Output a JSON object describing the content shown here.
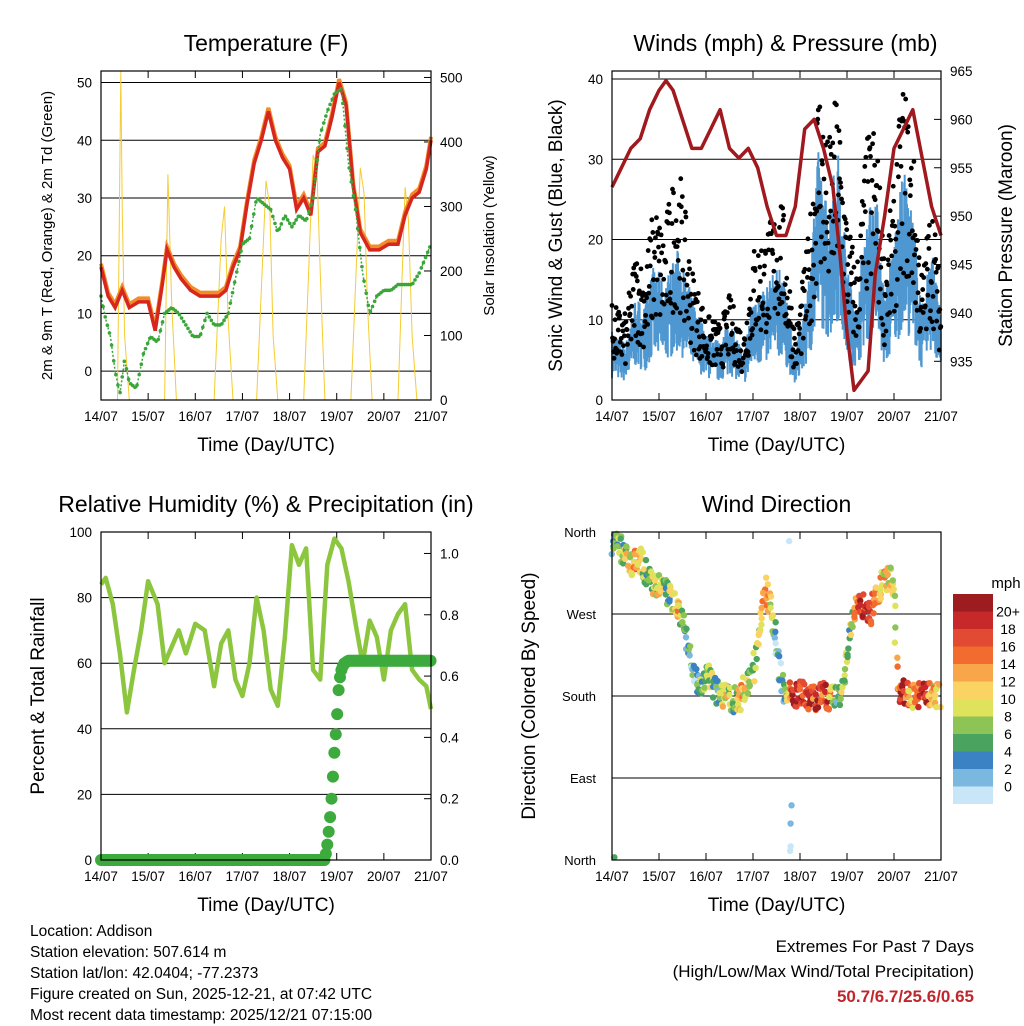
{
  "colors": {
    "temp2m": "#d7261e",
    "temp9m": "#f28c28",
    "dew": "#3aa63a",
    "solar": "#f5cc33",
    "wind": "#4f97d1",
    "gust": "#000000",
    "pressure": "#a0191e",
    "rh": "#8cc63f",
    "precip": "#3daa3d",
    "extreme": "#c0272d"
  },
  "chart_data": [
    {
      "id": "temperature",
      "type": "line",
      "title": "Temperature (F)",
      "xlabel": "Time (Day/UTC)",
      "ylabel": "2m & 9m T (Red, Orange) & 2m Td (Green)",
      "y2label": "Solar Insolation (Yellow)",
      "xticks": [
        "14/07",
        "15/07",
        "16/07",
        "17/07",
        "18/07",
        "19/07",
        "20/07",
        "21/07"
      ],
      "xlim": [
        0,
        7
      ],
      "ylim": [
        -5,
        52
      ],
      "y2lim": [
        0,
        510
      ],
      "yticks": [
        0,
        10,
        20,
        30,
        40,
        50
      ],
      "y2ticks": [
        0,
        100,
        200,
        300,
        400,
        500
      ],
      "series": [
        {
          "name": "2m T",
          "x": [
            0,
            0.15,
            0.3,
            0.45,
            0.6,
            0.8,
            1.0,
            1.15,
            1.3,
            1.4,
            1.55,
            1.7,
            1.9,
            2.1,
            2.3,
            2.5,
            2.65,
            2.8,
            2.95,
            3.1,
            3.25,
            3.4,
            3.55,
            3.7,
            3.85,
            4.0,
            4.15,
            4.3,
            4.45,
            4.6,
            4.75,
            4.9,
            5.05,
            5.2,
            5.35,
            5.5,
            5.7,
            5.9,
            6.1,
            6.3,
            6.45,
            6.6,
            6.75,
            6.9,
            7.0
          ],
          "values": [
            18,
            13,
            11,
            14,
            11,
            12,
            12,
            7,
            15,
            21,
            18,
            16,
            14,
            13,
            13,
            13,
            14,
            18,
            21,
            29,
            36,
            40,
            45,
            40,
            37,
            35,
            28,
            30,
            27,
            38,
            39,
            44,
            50,
            46,
            32,
            24,
            21,
            21,
            22,
            22,
            27,
            30,
            31,
            35,
            40
          ]
        },
        {
          "name": "Td",
          "x": [
            0,
            0.1,
            0.2,
            0.3,
            0.4,
            0.5,
            0.6,
            0.75,
            0.9,
            1.05,
            1.2,
            1.35,
            1.5,
            1.65,
            1.8,
            1.95,
            2.1,
            2.25,
            2.4,
            2.55,
            2.7,
            2.85,
            3.0,
            3.15,
            3.3,
            3.45,
            3.6,
            3.75,
            3.9,
            4.05,
            4.2,
            4.35,
            4.5,
            4.65,
            4.8,
            4.95,
            5.1,
            5.25,
            5.4,
            5.55,
            5.7,
            5.85,
            6.0,
            6.15,
            6.3,
            6.45,
            6.6,
            6.75,
            6.9,
            7.0
          ],
          "values": [
            13,
            9,
            6,
            0,
            -4,
            2,
            -2,
            -3,
            3,
            6,
            5,
            10,
            11,
            10,
            8,
            6,
            6,
            10,
            8,
            8,
            10,
            16,
            22,
            23,
            30,
            29,
            28,
            24,
            27,
            25,
            27,
            26,
            30,
            41,
            45,
            48,
            49,
            36,
            28,
            17,
            10,
            13,
            14,
            14,
            15,
            15,
            15,
            17,
            20,
            22
          ]
        },
        {
          "name": "Solar",
          "x": [
            0,
            0.35,
            0.42,
            0.45,
            0.5,
            0.6,
            1.35,
            1.42,
            1.5,
            1.6,
            2.4,
            2.55,
            2.62,
            2.7,
            2.8,
            3.3,
            3.5,
            3.58,
            3.65,
            3.75,
            4.3,
            4.5,
            4.58,
            4.65,
            4.75,
            5.3,
            5.5,
            5.58,
            5.65,
            5.75,
            6.3,
            6.45,
            6.52,
            6.6,
            6.7,
            7.0
          ],
          "values": [
            0,
            0,
            510,
            300,
            100,
            0,
            0,
            350,
            150,
            0,
            0,
            250,
            300,
            120,
            0,
            0,
            340,
            300,
            100,
            0,
            0,
            380,
            360,
            200,
            0,
            0,
            360,
            320,
            150,
            0,
            0,
            330,
            280,
            100,
            0,
            0
          ]
        }
      ]
    },
    {
      "id": "winds",
      "type": "line",
      "title": "Winds (mph) & Pressure (mb)",
      "xlabel": "Time (Day/UTC)",
      "ylabel": "Sonic Wind & Gust (Blue, Black)",
      "y2label": "Station Pressure (Maroon)",
      "xticks": [
        "14/07",
        "15/07",
        "16/07",
        "17/07",
        "18/07",
        "19/07",
        "20/07",
        "21/07"
      ],
      "xlim": [
        0,
        7
      ],
      "ylim": [
        0,
        41
      ],
      "y2lim": [
        931,
        965
      ],
      "yticks": [
        0,
        10,
        20,
        30,
        40
      ],
      "y2ticks": [
        935,
        940,
        945,
        950,
        955,
        960,
        965
      ],
      "series": [
        {
          "name": "Wind",
          "x": [
            0,
            0.3,
            0.5,
            0.7,
            0.9,
            1.1,
            1.4,
            1.7,
            2.0,
            2.3,
            2.5,
            2.8,
            3.0,
            3.3,
            3.6,
            3.9,
            4.2,
            4.4,
            4.6,
            4.8,
            5.0,
            5.2,
            5.4,
            5.6,
            5.8,
            6.0,
            6.2,
            6.4,
            6.6,
            6.8,
            7.0
          ],
          "values": [
            6,
            5,
            9,
            8,
            12,
            10,
            13,
            9,
            6,
            5,
            7,
            4,
            9,
            10,
            12,
            4,
            11,
            22,
            16,
            22,
            12,
            8,
            16,
            19,
            9,
            14,
            20,
            16,
            8,
            14,
            7
          ]
        },
        {
          "name": "Gust",
          "x": [
            0,
            0.3,
            0.5,
            0.7,
            0.9,
            1.1,
            1.4,
            1.7,
            2.0,
            2.3,
            2.5,
            2.8,
            3.0,
            3.3,
            3.6,
            3.9,
            4.2,
            4.4,
            4.6,
            4.8,
            5.0,
            5.2,
            5.4,
            5.6,
            5.8,
            6.0,
            6.2,
            6.4,
            6.6,
            6.8,
            7.0
          ],
          "values": [
            10,
            9,
            16,
            14,
            21,
            18,
            26,
            14,
            9,
            8,
            11,
            7,
            16,
            18,
            22,
            7,
            18,
            35,
            27,
            33,
            20,
            14,
            27,
            30,
            15,
            23,
            34,
            27,
            13,
            22,
            11
          ]
        },
        {
          "name": "Pressure",
          "x": [
            0,
            0.2,
            0.4,
            0.6,
            0.8,
            1.0,
            1.15,
            1.3,
            1.5,
            1.7,
            1.9,
            2.1,
            2.3,
            2.5,
            2.7,
            2.9,
            3.1,
            3.3,
            3.5,
            3.7,
            3.9,
            4.1,
            4.3,
            4.5,
            4.7,
            4.85,
            5.0,
            5.15,
            5.3,
            5.45,
            5.6,
            5.8,
            6.0,
            6.2,
            6.4,
            6.6,
            6.8,
            7.0
          ],
          "values": [
            953,
            955,
            957,
            958,
            961,
            963,
            964,
            963,
            960,
            957,
            957,
            959,
            961,
            957,
            956,
            957,
            955,
            951,
            948,
            948,
            951,
            959,
            960,
            957,
            953,
            946,
            938,
            932,
            933,
            934,
            944,
            950,
            957,
            959,
            961,
            956,
            951,
            948
          ]
        }
      ]
    },
    {
      "id": "humidity",
      "type": "line",
      "title": "Relative Humidity (%) & Precipitation (in)",
      "xlabel": "Time (Day/UTC)",
      "ylabel": "Percent & Total Rainfall",
      "xticks": [
        "14/07",
        "15/07",
        "16/07",
        "17/07",
        "18/07",
        "19/07",
        "20/07",
        "21/07"
      ],
      "xlim": [
        0,
        7
      ],
      "ylim": [
        0,
        100
      ],
      "y2lim": [
        0,
        1.07
      ],
      "yticks": [
        0,
        20,
        40,
        60,
        80,
        100
      ],
      "y2ticks": [
        "0.0",
        "0.2",
        "0.4",
        "0.6",
        "0.8",
        "1.0"
      ],
      "series": [
        {
          "name": "RH",
          "x": [
            0,
            0.1,
            0.25,
            0.4,
            0.55,
            0.7,
            0.85,
            1.0,
            1.2,
            1.35,
            1.5,
            1.65,
            1.8,
            2.0,
            2.2,
            2.4,
            2.55,
            2.7,
            2.85,
            3.0,
            3.15,
            3.3,
            3.45,
            3.6,
            3.75,
            3.9,
            4.05,
            4.2,
            4.35,
            4.5,
            4.65,
            4.8,
            4.95,
            5.1,
            5.25,
            5.4,
            5.55,
            5.7,
            5.85,
            6.0,
            6.15,
            6.3,
            6.45,
            6.6,
            6.75,
            6.9,
            7.0
          ],
          "values": [
            84,
            86,
            78,
            63,
            45,
            58,
            70,
            85,
            78,
            60,
            65,
            70,
            63,
            72,
            70,
            53,
            66,
            70,
            55,
            50,
            60,
            80,
            70,
            52,
            47,
            68,
            96,
            90,
            95,
            58,
            55,
            90,
            98,
            95,
            85,
            72,
            60,
            73,
            68,
            55,
            70,
            75,
            78,
            58,
            55,
            53,
            46
          ]
        },
        {
          "name": "Precip",
          "x": [
            0,
            4.75,
            4.8,
            4.85,
            4.9,
            4.95,
            5.0,
            5.05,
            5.1,
            5.15,
            5.25,
            7.0
          ],
          "values": [
            0,
            0,
            0.05,
            0.12,
            0.22,
            0.35,
            0.45,
            0.58,
            0.62,
            0.64,
            0.65,
            0.65
          ]
        }
      ]
    },
    {
      "id": "direction",
      "type": "scatter",
      "title": "Wind Direction",
      "xlabel": "Time (Day/UTC)",
      "ylabel": "Direction (Colored By Speed)",
      "xticks": [
        "14/07",
        "15/07",
        "16/07",
        "17/07",
        "18/07",
        "19/07",
        "20/07",
        "21/07"
      ],
      "xlim": [
        0,
        7
      ],
      "ylim": [
        0,
        360
      ],
      "yticks": [
        {
          "v": 360,
          "label": "North"
        },
        {
          "v": 270,
          "label": "West"
        },
        {
          "v": 180,
          "label": "South"
        },
        {
          "v": 90,
          "label": "East"
        },
        {
          "v": 0,
          "label": "North"
        }
      ],
      "x": [
        0,
        0.1,
        0.2,
        0.3,
        0.4,
        0.5,
        0.6,
        0.7,
        0.8,
        0.9,
        1.0,
        1.1,
        1.2,
        1.3,
        1.4,
        1.5,
        1.6,
        1.7,
        1.8,
        1.9,
        2.0,
        2.1,
        2.2,
        2.3,
        2.4,
        2.5,
        2.6,
        2.7,
        2.8,
        2.9,
        3.0,
        3.1,
        3.2,
        3.3,
        3.4,
        3.5,
        3.6,
        3.7,
        3.8,
        3.9,
        4.0,
        4.1,
        4.2,
        4.3,
        4.4,
        4.5,
        4.6,
        4.7,
        4.8,
        4.9,
        5.0,
        5.1,
        5.2,
        5.3,
        5.4,
        5.5,
        5.6,
        5.7,
        5.8,
        5.9,
        6.0,
        6.1,
        6.2,
        6.3,
        6.4,
        6.5,
        6.6,
        6.7,
        6.8,
        6.9,
        7.0
      ],
      "values": [
        350,
        348,
        340,
        335,
        325,
        330,
        328,
        320,
        310,
        305,
        300,
        298,
        290,
        285,
        278,
        265,
        235,
        215,
        200,
        190,
        205,
        195,
        185,
        180,
        183,
        178,
        176,
        175,
        185,
        195,
        210,
        240,
        275,
        300,
        265,
        240,
        190,
        185,
        182,
        180,
        183,
        180,
        178,
        177,
        180,
        182,
        176,
        178,
        180,
        182,
        230,
        260,
        275,
        280,
        278,
        270,
        285,
        300,
        305,
        310,
        300,
        180,
        185,
        182,
        180,
        180,
        183,
        181,
        180,
        180,
        179
      ],
      "speed": [
        4,
        8,
        6,
        10,
        12,
        14,
        10,
        8,
        6,
        10,
        12,
        8,
        6,
        10,
        14,
        8,
        6,
        4,
        4,
        6,
        8,
        10,
        4,
        6,
        12,
        8,
        6,
        14,
        12,
        10,
        8,
        10,
        12,
        16,
        8,
        4,
        4,
        6,
        18,
        20,
        20,
        18,
        20,
        18,
        20,
        18,
        20,
        8,
        6,
        8,
        8,
        10,
        14,
        18,
        20,
        18,
        16,
        14,
        12,
        10,
        8,
        18,
        20,
        14,
        12,
        18,
        20,
        20,
        10,
        14,
        12
      ],
      "legend": {
        "title": "mph",
        "labels": [
          "20+",
          "18",
          "16",
          "14",
          "12",
          "10",
          "8",
          "6",
          "4",
          "2",
          "0"
        ],
        "colors": [
          "#9c1c1f",
          "#c7282a",
          "#e34a33",
          "#f26b2f",
          "#f9a64a",
          "#fbd362",
          "#dfe25b",
          "#8cc455",
          "#4aa45f",
          "#3b82c4",
          "#7ab8e0",
          "#c8e6f8"
        ]
      }
    }
  ],
  "footer": {
    "location": "Location: Addison",
    "elevation": "Station elevation: 507.614 m",
    "latlon": "Station lat/lon: 42.0404; -77.2373",
    "created": "Figure created on Sun, 2025-12-21, at 07:42 UTC",
    "recent": "Most recent data timestamp: 2025/12/21 07:15:00",
    "ext_title": "Extremes For Past 7 Days",
    "ext_sub": "(High/Low/Max Wind/Total Precipitation)",
    "ext_values": "50.7/6.7/25.6/0.65"
  }
}
